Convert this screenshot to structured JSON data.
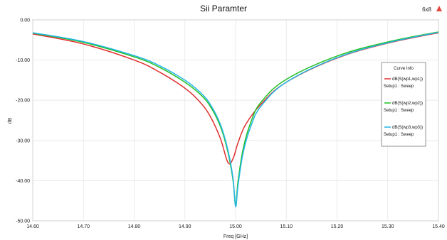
{
  "header": {
    "title": "Sii Paramter",
    "badge": "6x8"
  },
  "chart_data": {
    "type": "line",
    "title": "Sii Paramter",
    "xlabel": "Freq [GHz]",
    "ylabel": "dB",
    "xlim": [
      14.6,
      15.4
    ],
    "ylim": [
      -50,
      0
    ],
    "x_ticks": [
      "14.60",
      "14.70",
      "14.80",
      "14.90",
      "15.00",
      "15.10",
      "15.20",
      "15.30",
      "15.40"
    ],
    "y_ticks": [
      "0.00",
      "-10.00",
      "-20.00",
      "-30.00",
      "-40.00",
      "-50.00"
    ],
    "x_tick_values": [
      14.6,
      14.7,
      14.8,
      14.9,
      15.0,
      15.1,
      15.2,
      15.3,
      15.4
    ],
    "y_tick_values": [
      0,
      -10,
      -20,
      -30,
      -40,
      -50
    ],
    "grid": true,
    "legend": {
      "title": "Curve Info",
      "placement": "right"
    },
    "series": [
      {
        "name": "dB(S(wp1,wp1))",
        "setup": "Setup1 : Sweep",
        "color": "#e03030",
        "x": [
          14.6,
          14.7,
          14.8,
          14.85,
          14.9,
          14.93,
          14.95,
          14.97,
          14.985,
          14.995,
          15.005,
          15.02,
          15.05,
          15.1,
          15.2,
          15.3,
          15.4
        ],
        "y": [
          -3.5,
          -6.0,
          -10.0,
          -13.0,
          -17.0,
          -20.5,
          -24.0,
          -29.5,
          -35.5,
          -34.5,
          -30.5,
          -26.0,
          -21.0,
          -15.5,
          -9.5,
          -5.8,
          -3.2
        ]
      },
      {
        "name": "dB(S(wp2,wp2))",
        "setup": "Setup1 : Sweep",
        "color": "#22c022",
        "x": [
          14.6,
          14.7,
          14.8,
          14.85,
          14.9,
          14.93,
          14.95,
          14.97,
          14.985,
          14.995,
          15.0,
          15.005,
          15.015,
          15.03,
          15.05,
          15.1,
          15.2,
          15.3,
          15.4
        ],
        "y": [
          -3.3,
          -5.6,
          -9.2,
          -11.8,
          -15.5,
          -18.5,
          -21.5,
          -26.5,
          -33.0,
          -40.0,
          -46.0,
          -40.0,
          -32.0,
          -25.5,
          -20.5,
          -14.8,
          -9.0,
          -5.5,
          -3.0
        ]
      },
      {
        "name": "dB(S(wp3,wp3))",
        "setup": "Setup1 : Sweep",
        "color": "#22b6e6",
        "x": [
          14.6,
          14.7,
          14.8,
          14.85,
          14.9,
          14.93,
          14.95,
          14.97,
          14.985,
          14.995,
          15.0,
          15.005,
          15.015,
          15.03,
          15.05,
          15.1,
          15.2,
          15.3,
          15.4
        ],
        "y": [
          -3.2,
          -5.4,
          -8.9,
          -11.4,
          -15.0,
          -18.0,
          -21.0,
          -26.0,
          -32.5,
          -39.5,
          -46.5,
          -41.0,
          -33.0,
          -26.5,
          -21.5,
          -15.5,
          -9.4,
          -5.7,
          -3.1
        ]
      }
    ]
  }
}
